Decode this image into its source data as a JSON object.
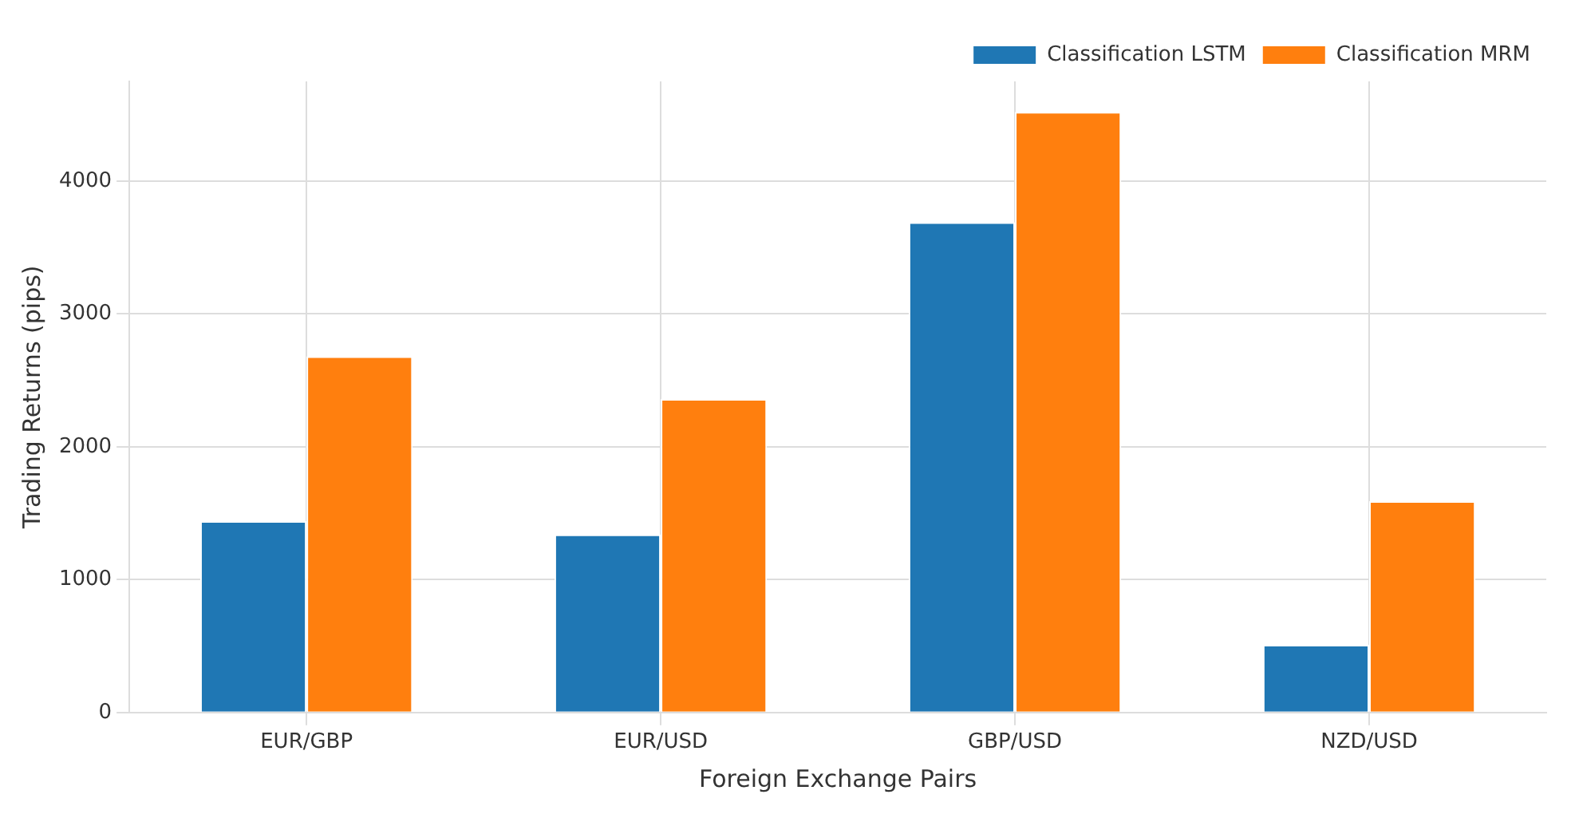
{
  "chart_data": {
    "type": "bar",
    "xlabel": "Foreign Exchange Pairs",
    "ylabel": "Trading Returns (pips)",
    "categories": [
      "EUR/GBP",
      "EUR/USD",
      "GBP/USD",
      "NZD/USD"
    ],
    "series": [
      {
        "name": "Classification LSTM",
        "color": "#1f77b4",
        "values": [
          1440,
          1340,
          3690,
          510
        ]
      },
      {
        "name": "Classification MRM",
        "color": "#ff7f0e",
        "values": [
          2680,
          2360,
          4520,
          1590
        ]
      }
    ],
    "ylim": [
      0,
      4750
    ],
    "yticks": [
      0,
      1000,
      2000,
      3000,
      4000
    ],
    "grid": true,
    "legend": "top right"
  }
}
